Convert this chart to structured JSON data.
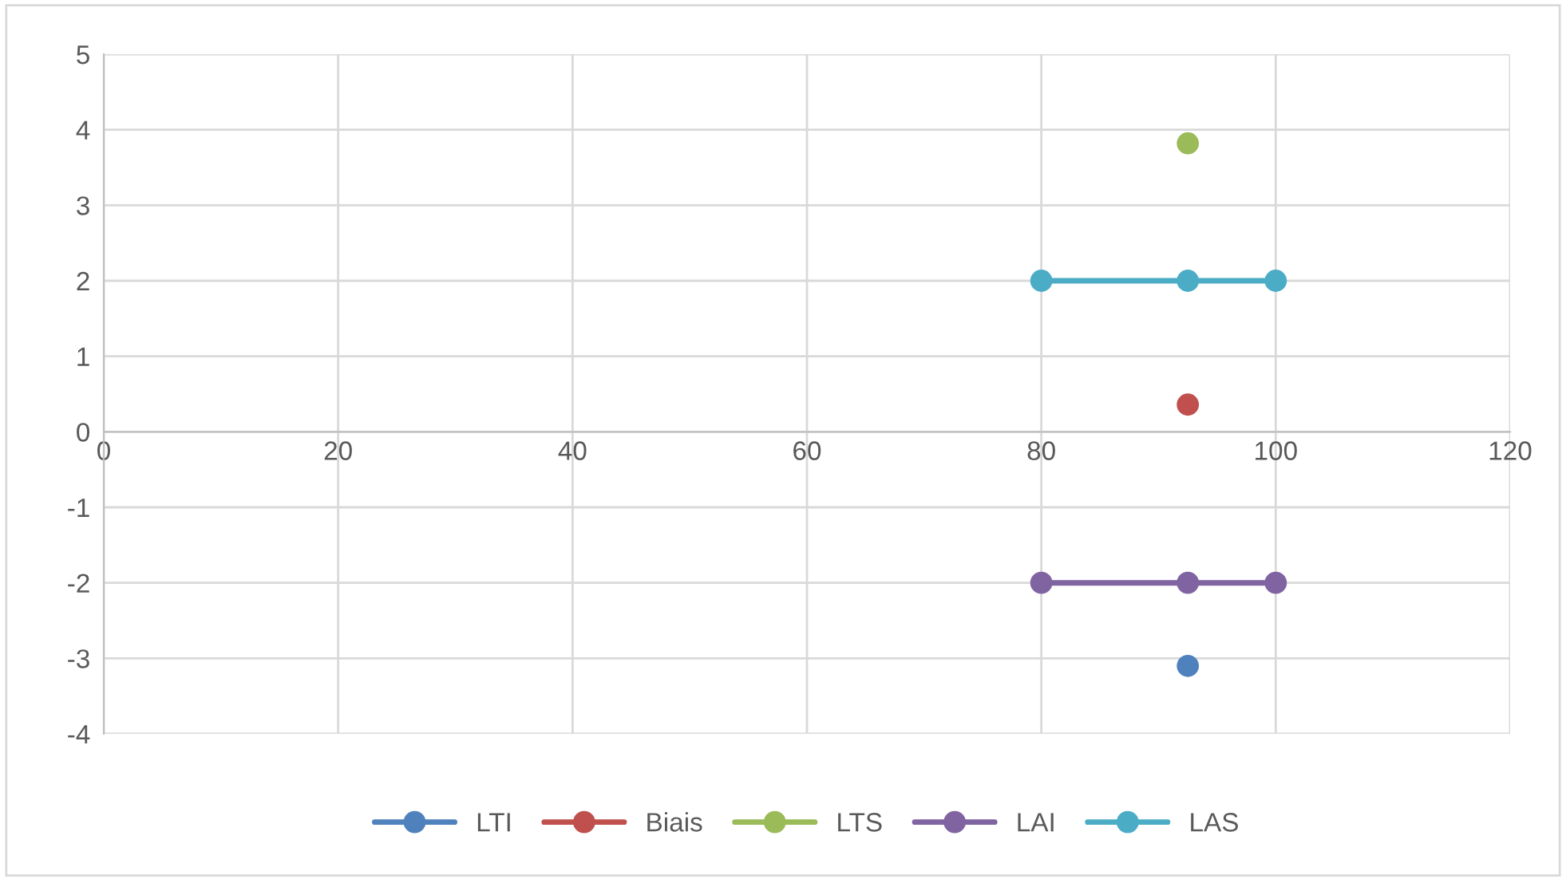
{
  "chart_data": {
    "type": "line",
    "marker": "circle",
    "line_style": "solid",
    "grid": true,
    "legend": "bottom",
    "xlim": [
      0,
      120
    ],
    "xticks": [
      0,
      20,
      40,
      60,
      80,
      100,
      120
    ],
    "ylim": [
      -4,
      5
    ],
    "yticks": [
      -4,
      -3,
      -2,
      -1,
      0,
      1,
      2,
      3,
      4,
      5
    ],
    "series": [
      {
        "name": "LTI",
        "color": "#4f81bd",
        "x": [
          92.5
        ],
        "values": [
          -3.1
        ]
      },
      {
        "name": "Biais",
        "color": "#c0504d",
        "x": [
          92.5
        ],
        "values": [
          0.36
        ]
      },
      {
        "name": "LTS",
        "color": "#9bbb59",
        "x": [
          92.5
        ],
        "values": [
          3.82
        ]
      },
      {
        "name": "LAI",
        "color": "#8064a2",
        "x": [
          80,
          92.5,
          100
        ],
        "values": [
          -2,
          -2,
          -2
        ]
      },
      {
        "name": "LAS",
        "color": "#4bacc6",
        "x": [
          80,
          92.5,
          100
        ],
        "values": [
          2,
          2,
          2
        ]
      }
    ]
  }
}
